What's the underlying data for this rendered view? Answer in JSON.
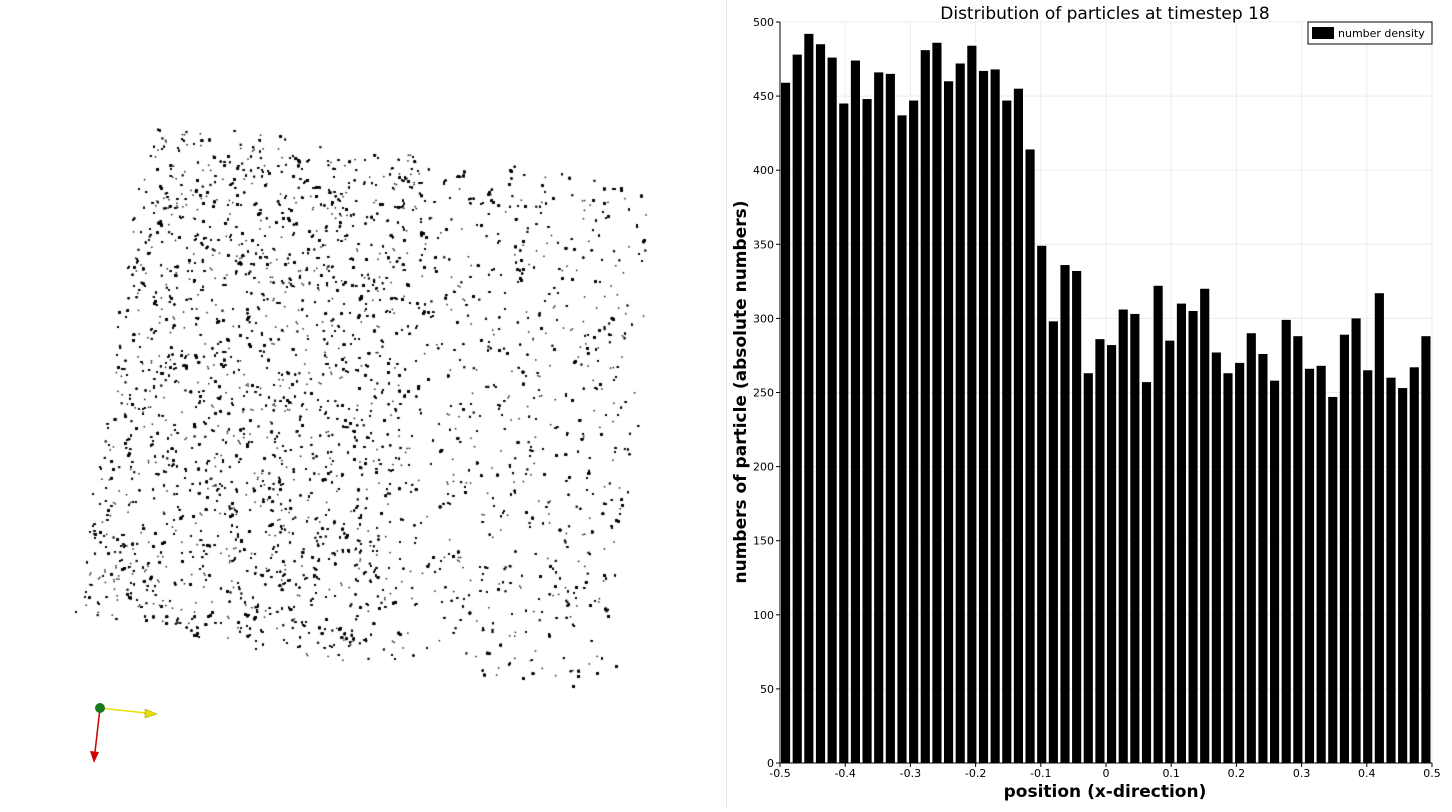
{
  "chart_data": {
    "type": "bar",
    "title": "Distribution of particles at timestep 18",
    "xlabel": "position (x-direction)",
    "ylabel": "numbers of particle (absolute numbers)",
    "legend": {
      "label": "number density",
      "placement": "top-right"
    },
    "xlim": [
      -0.5,
      0.5
    ],
    "ylim": [
      0,
      500
    ],
    "xticks": [
      "-0.5",
      "-0.4",
      "-0.3",
      "-0.2",
      "-0.1",
      "0",
      "0.1",
      "0.2",
      "0.3",
      "0.4",
      "0.5"
    ],
    "yticks": [
      "0",
      "50",
      "100",
      "150",
      "200",
      "250",
      "300",
      "350",
      "400",
      "450",
      "500"
    ],
    "grid": true,
    "bin_width": 0.01538,
    "values": [
      459,
      478,
      492,
      485,
      476,
      445,
      474,
      448,
      466,
      465,
      437,
      447,
      481,
      486,
      460,
      472,
      484,
      467,
      468,
      447,
      455,
      414,
      349,
      298,
      336,
      332,
      263,
      286,
      282,
      306,
      303,
      257,
      322,
      285,
      310,
      305,
      320,
      277,
      263,
      270,
      290,
      276,
      258,
      299,
      288,
      266,
      268,
      247,
      289,
      300,
      265,
      317,
      260,
      253,
      267,
      288
    ]
  },
  "scene": {
    "point_color": "#000000",
    "axis_colors": {
      "x": "#e8e000",
      "y": "#cc0000",
      "z": "#1a7a1a"
    }
  }
}
